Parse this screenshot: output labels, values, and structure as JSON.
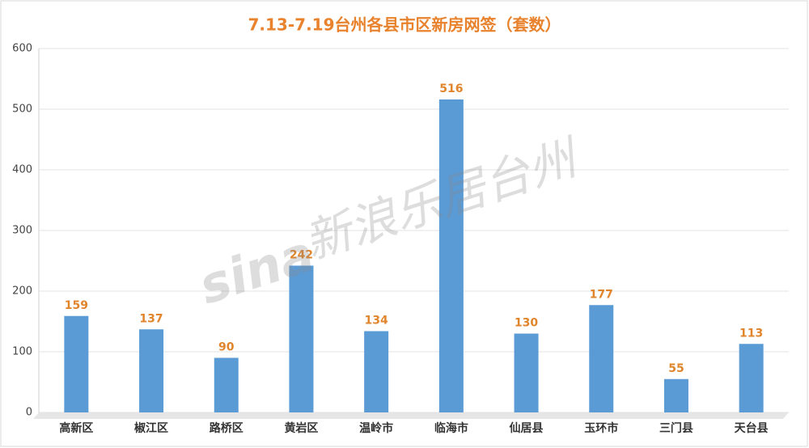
{
  "chart_data": {
    "type": "bar",
    "title": "7.13-7.19台州各县市区新房网签（套数）",
    "categories": [
      "高新区",
      "椒江区",
      "路桥区",
      "黄岩区",
      "温岭市",
      "临海市",
      "仙居县",
      "玉环市",
      "三门县",
      "天台县"
    ],
    "values": [
      159,
      137,
      90,
      242,
      134,
      516,
      130,
      177,
      55,
      113
    ],
    "color": "#5b9bd5",
    "label_color": "#e0852b",
    "ylim": [
      0,
      600
    ],
    "yticks": [
      0,
      100,
      200,
      300,
      400,
      500,
      600
    ],
    "grid": true,
    "watermark_logo": "sina",
    "watermark": "新浪乐居台州"
  }
}
